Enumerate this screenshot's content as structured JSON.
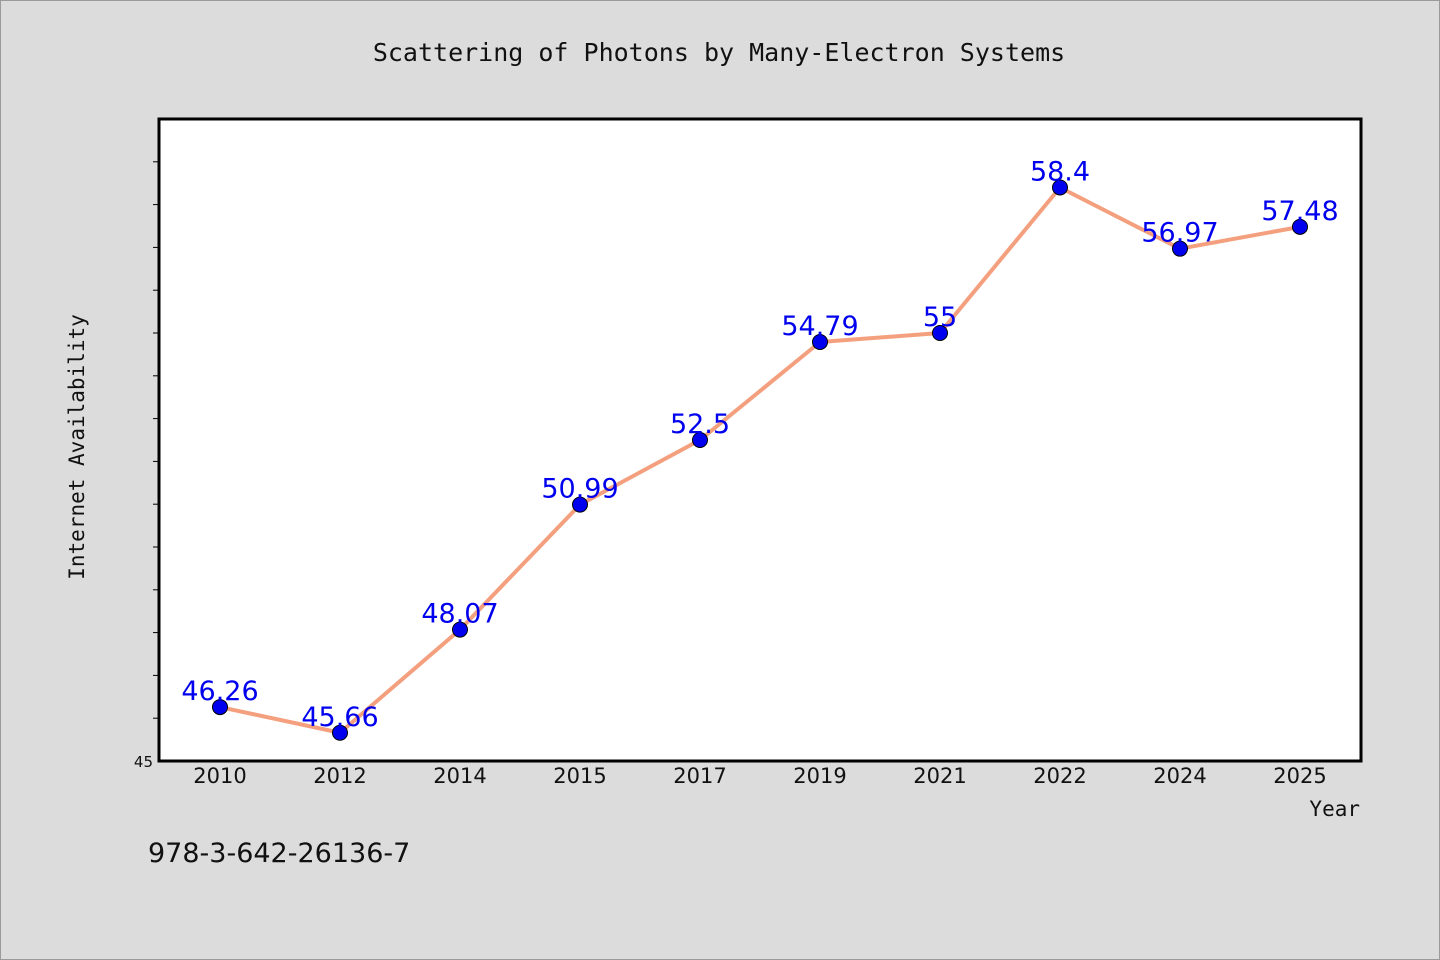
{
  "chart_data": {
    "type": "line",
    "title": "Scattering of Photons by Many-Electron Systems",
    "xlabel": "Year",
    "ylabel": "Internet Availability",
    "categories": [
      "2010",
      "2012",
      "2014",
      "2015",
      "2017",
      "2019",
      "2021",
      "2022",
      "2024",
      "2025"
    ],
    "series": [
      {
        "values": [
          46.26,
          45.66,
          48.07,
          50.99,
          52.5,
          54.79,
          55,
          58.4,
          56.97,
          57.48
        ],
        "labels": [
          "46.26",
          "45.66",
          "48.07",
          "50.99",
          "52.5",
          "54.79",
          "55",
          "58.4",
          "56.97",
          "57.48"
        ]
      }
    ],
    "ylim": [
      45,
      60
    ],
    "ytick_labels": [
      "45"
    ],
    "grid": false,
    "colors": {
      "line": "#f4a07e",
      "marker": "#0000ee",
      "label": "#0000ee",
      "plot_bg": "#ffffff",
      "page_bg": "#dcdcdc"
    }
  },
  "footer_text": "978-3-642-26136-7"
}
